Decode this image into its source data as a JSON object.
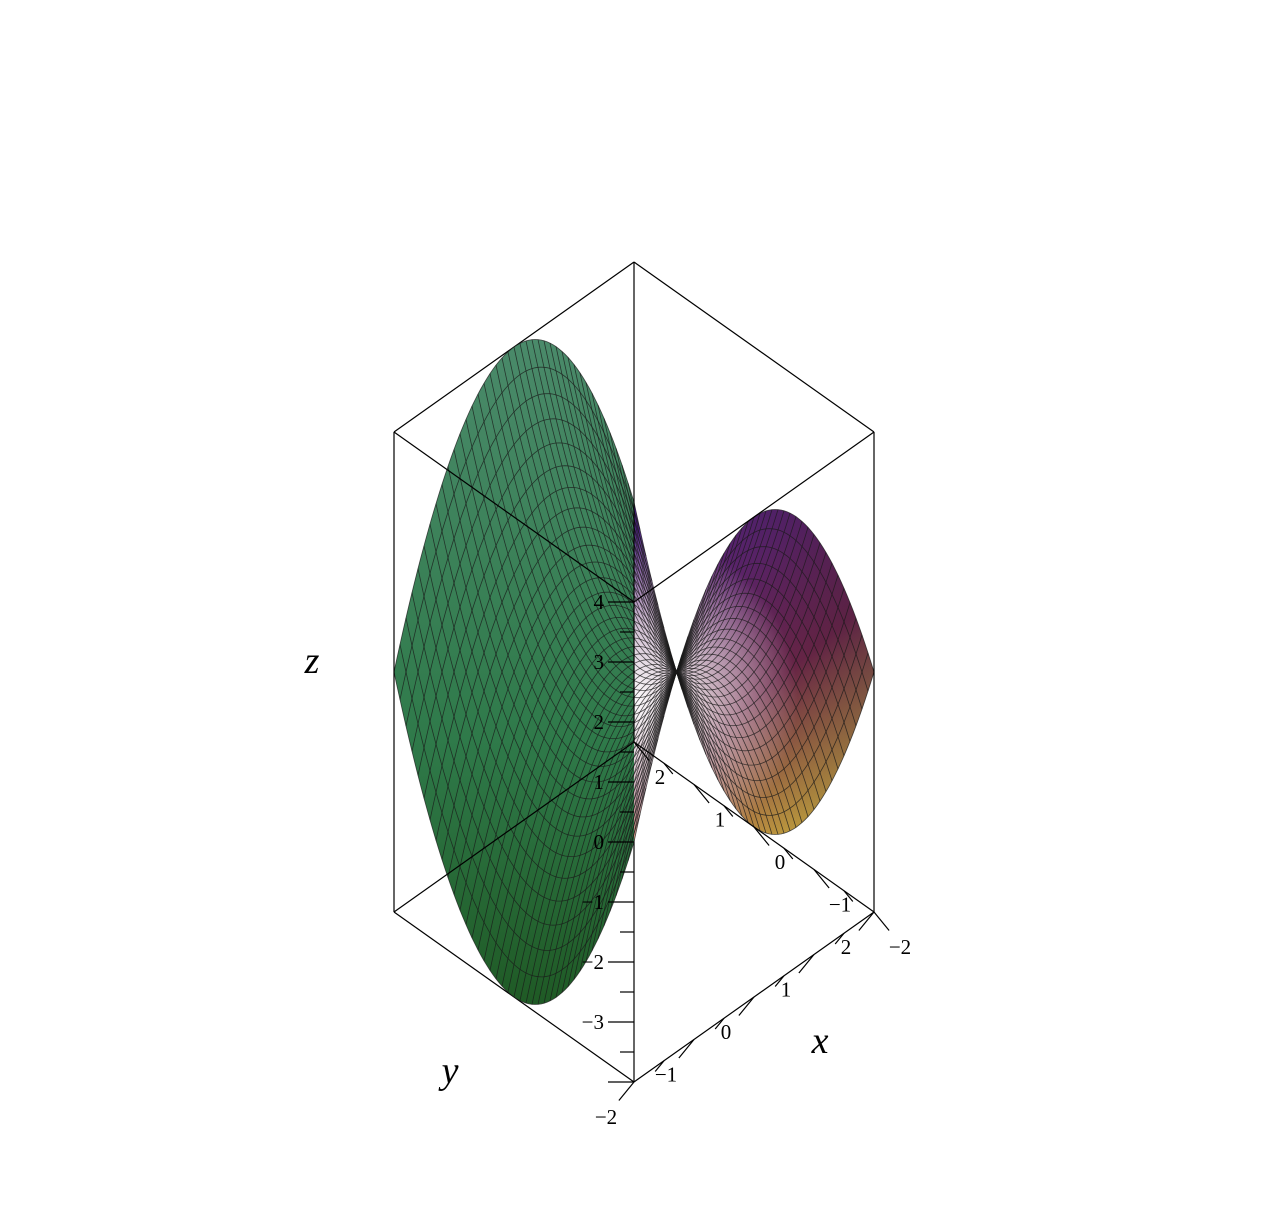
{
  "chart_data": {
    "type": "surface3d",
    "title": "",
    "surface": "z = x^2 - y^2",
    "colors": {
      "top_left": "#5a1f8a",
      "left": "#8c2a5a",
      "bottom": "#ffd04a",
      "center_highlight": "#ffffff",
      "right": "#2f7a4a"
    },
    "axes": {
      "x": {
        "label": "x",
        "range": [
          -2,
          2
        ],
        "ticks": [
          -2,
          -1,
          0,
          1,
          2
        ],
        "tick_labels": [
          "−2",
          "−1",
          "0",
          "1",
          "2"
        ]
      },
      "y": {
        "label": "y",
        "range": [
          -2,
          2
        ],
        "ticks": [
          -2,
          -1,
          0,
          1,
          2
        ],
        "tick_labels": [
          "−2",
          "−1",
          "0",
          "1",
          "2"
        ]
      },
      "z": {
        "label": "z",
        "range": [
          -4,
          4
        ],
        "ticks": [
          -3,
          -2,
          -1,
          0,
          1,
          2,
          3,
          4
        ],
        "tick_labels": [
          "−3",
          "−2",
          "−1",
          "0",
          "1",
          "2",
          "3",
          "4"
        ]
      }
    },
    "grid": false,
    "box": true
  }
}
